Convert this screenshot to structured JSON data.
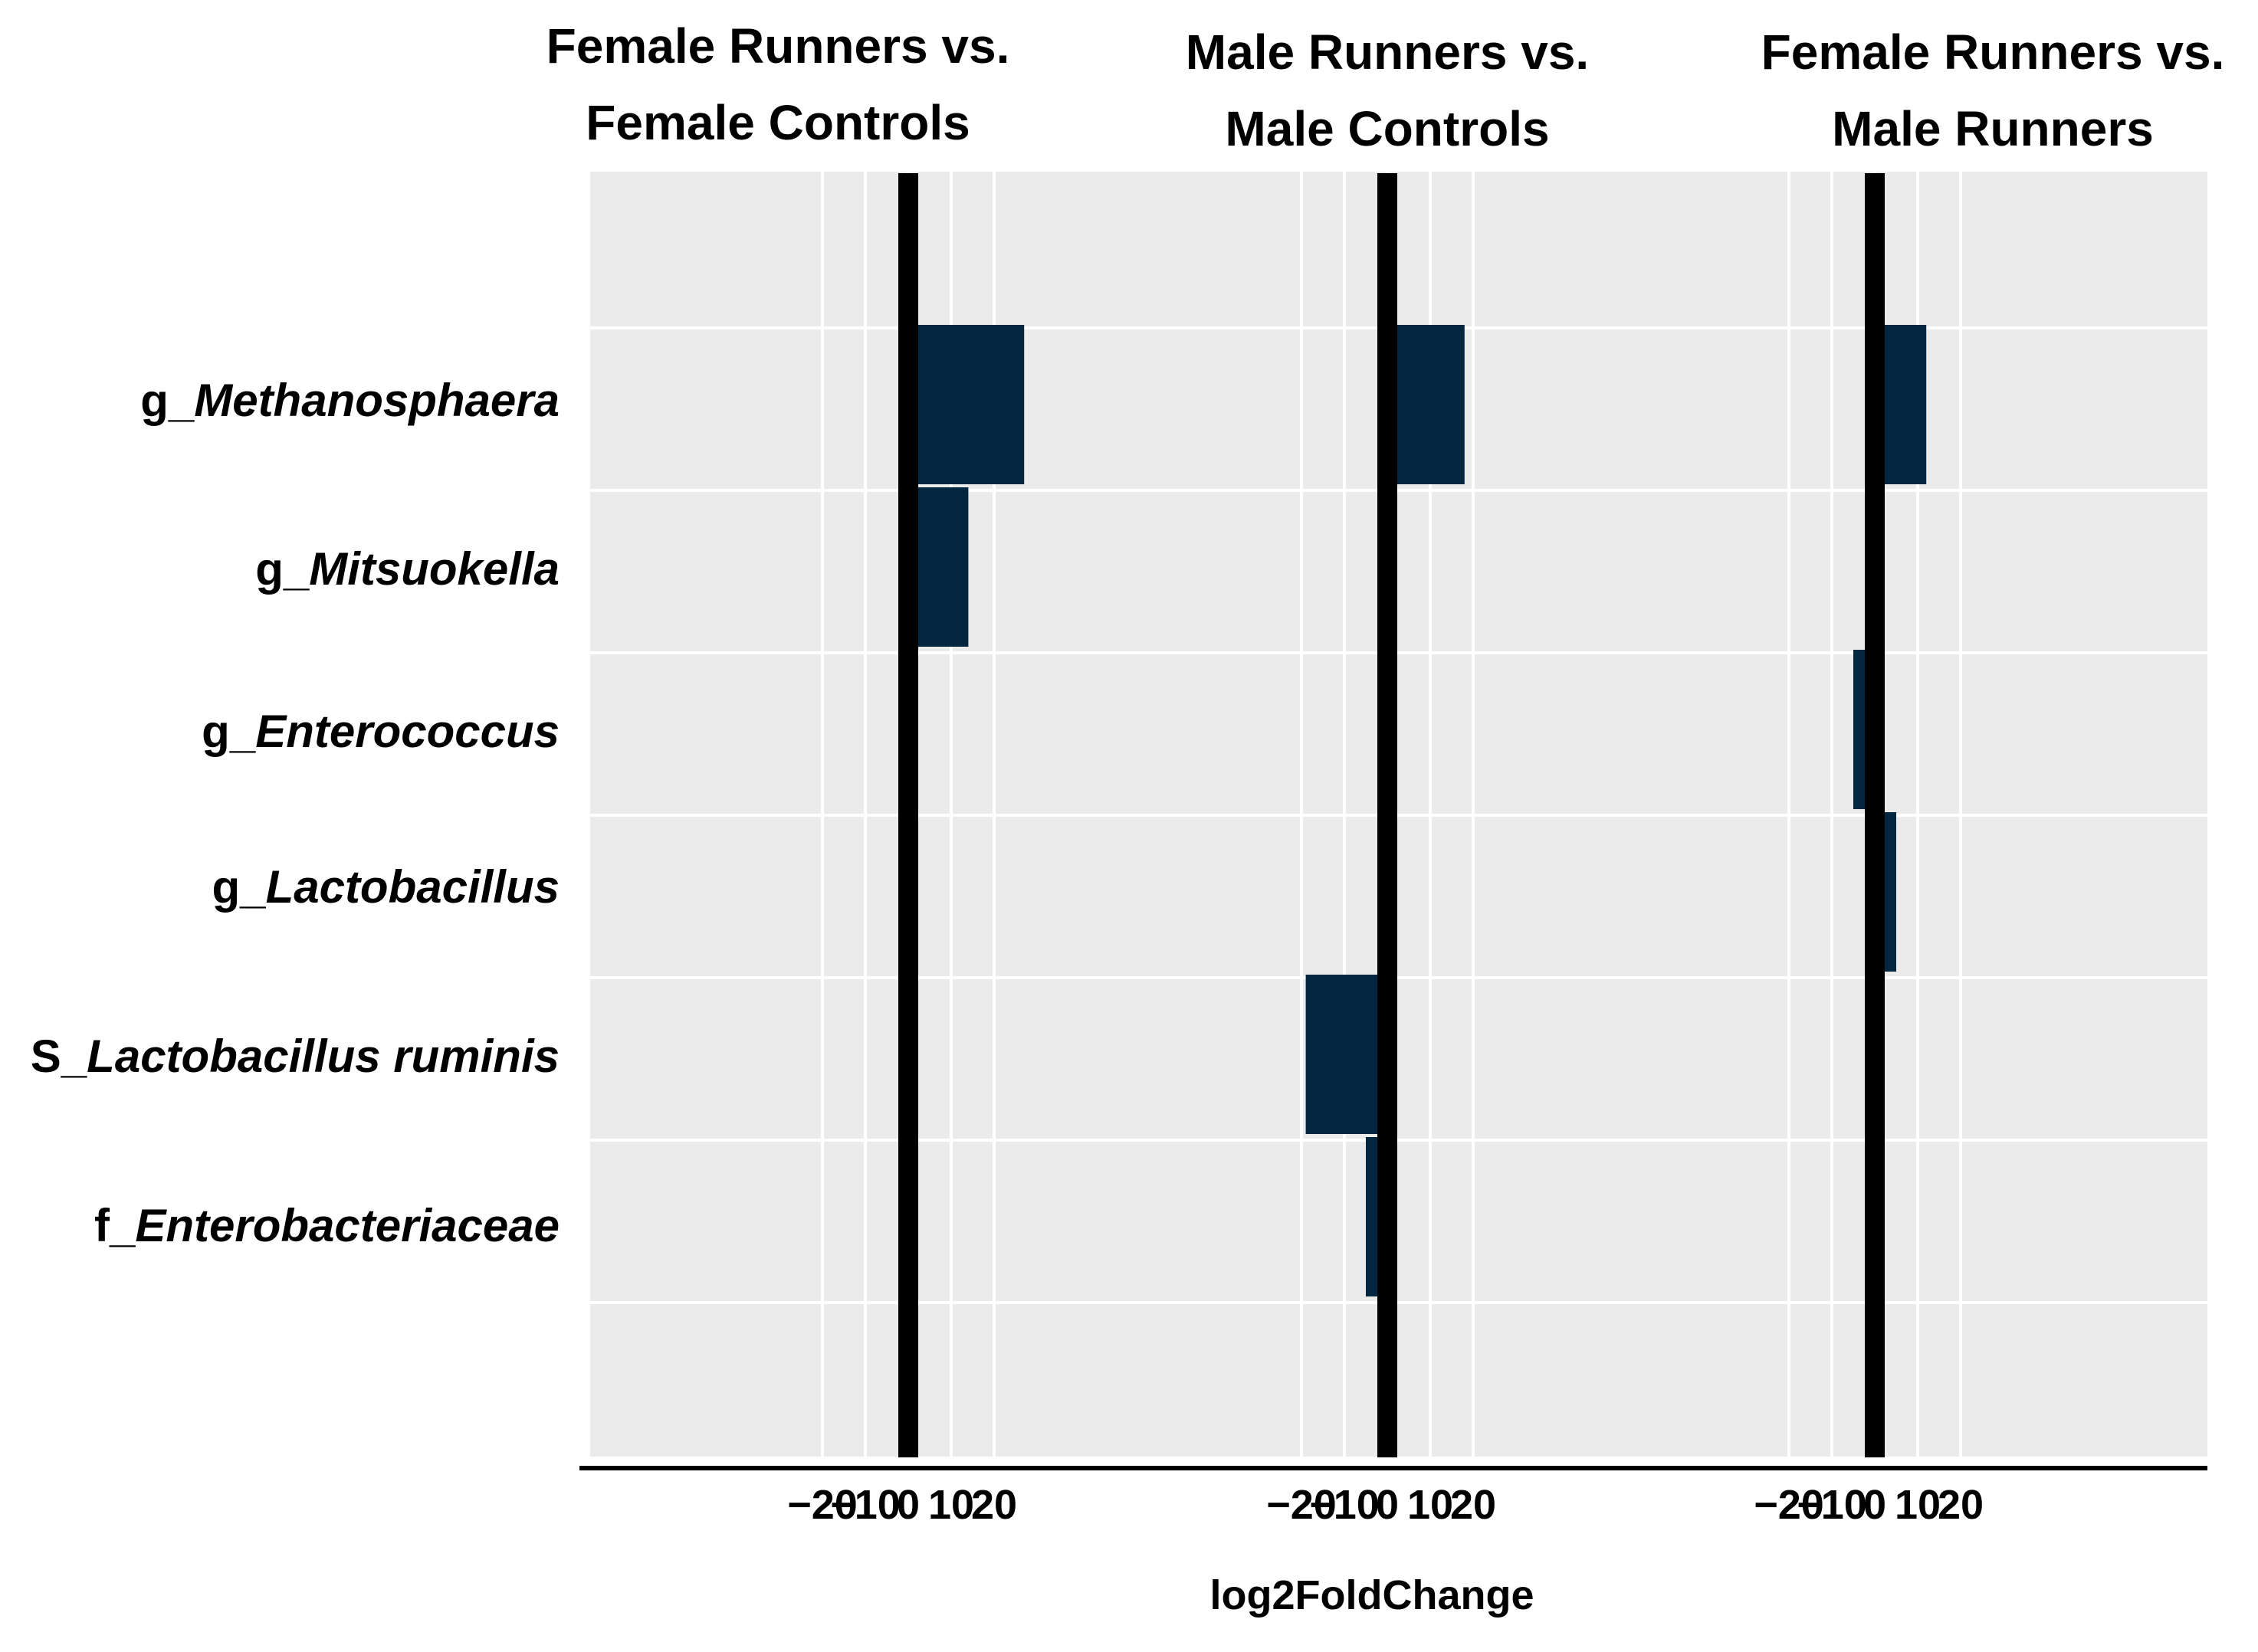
{
  "chart_data": {
    "type": "bar",
    "orientation": "horizontal",
    "xlabel": "log2FoldChange",
    "ylabel": "",
    "grid": true,
    "categories": [
      {
        "prefix": "g_",
        "name": "Methanosphaera"
      },
      {
        "prefix": "g_",
        "name": "Mitsuokella"
      },
      {
        "prefix": "g_",
        "name": "Enterococcus"
      },
      {
        "prefix": "g_",
        "name": "Lactobacillus"
      },
      {
        "prefix": "S_",
        "name": "Lactobacillus ruminis"
      },
      {
        "prefix": "f_",
        "name": "Enterobacteriaceae"
      }
    ],
    "panels": [
      {
        "title_lines": [
          "Female Runners vs.",
          "Female Controls"
        ],
        "xlim": [
          -30,
          30
        ],
        "xticks": [
          -20,
          -10,
          0,
          10,
          20
        ],
        "xtick_labels": [
          "−20",
          "−10",
          "0",
          "10",
          "20"
        ],
        "values": [
          27,
          14,
          null,
          null,
          null,
          null
        ]
      },
      {
        "title_lines": [
          "Male Runners vs.",
          "Male Controls"
        ],
        "xlim": [
          -30,
          30
        ],
        "xticks": [
          -20,
          -10,
          0,
          10,
          20
        ],
        "xtick_labels": [
          "−20",
          "−10",
          "0",
          "10",
          "20"
        ],
        "values": [
          18,
          null,
          null,
          null,
          -19,
          -5
        ]
      },
      {
        "title_lines": [
          "Female Runners vs.",
          "Male Runners"
        ],
        "xlim": [
          -30,
          30
        ],
        "xticks": [
          -20,
          -10,
          0,
          10,
          20
        ],
        "xtick_labels": [
          "−20",
          "−10",
          "0",
          "10",
          "20"
        ],
        "values": [
          12,
          null,
          -5,
          5,
          null,
          null
        ]
      }
    ]
  },
  "colors": {
    "bar": "#022540",
    "panel_bg": "#ebebeb",
    "grid": "#ffffff",
    "zero_line": "#000000",
    "axis": "#000000"
  }
}
